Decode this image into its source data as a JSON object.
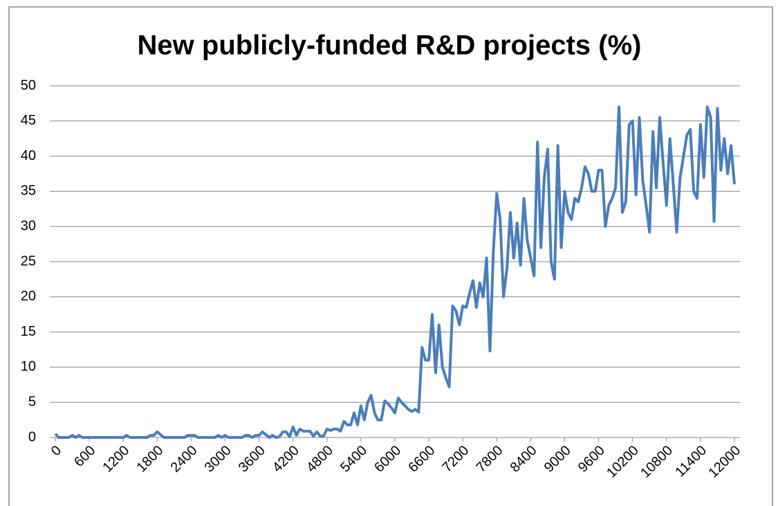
{
  "chart_data": {
    "type": "line",
    "title": "New publicly-funded R&D projects (%)",
    "x": [
      0,
      60,
      120,
      180,
      240,
      300,
      360,
      420,
      480,
      540,
      600,
      660,
      720,
      780,
      840,
      900,
      960,
      1020,
      1080,
      1140,
      1200,
      1260,
      1320,
      1380,
      1440,
      1500,
      1560,
      1620,
      1680,
      1740,
      1800,
      1860,
      1920,
      1980,
      2040,
      2100,
      2160,
      2220,
      2280,
      2340,
      2400,
      2460,
      2520,
      2580,
      2640,
      2700,
      2760,
      2820,
      2880,
      2940,
      3000,
      3060,
      3120,
      3180,
      3240,
      3300,
      3360,
      3420,
      3480,
      3540,
      3600,
      3660,
      3720,
      3780,
      3840,
      3900,
      3960,
      4020,
      4080,
      4140,
      4200,
      4260,
      4320,
      4380,
      4440,
      4500,
      4560,
      4620,
      4680,
      4740,
      4800,
      4860,
      4920,
      4980,
      5040,
      5100,
      5160,
      5220,
      5280,
      5340,
      5400,
      5460,
      5520,
      5580,
      5640,
      5700,
      5760,
      5820,
      5880,
      5940,
      6000,
      6060,
      6120,
      6180,
      6240,
      6300,
      6360,
      6420,
      6480,
      6540,
      6600,
      6660,
      6720,
      6780,
      6840,
      6900,
      6960,
      7020,
      7080,
      7140,
      7200,
      7260,
      7320,
      7380,
      7440,
      7500,
      7560,
      7620,
      7680,
      7740,
      7800,
      7860,
      7920,
      7980,
      8040,
      8100,
      8160,
      8220,
      8280,
      8340,
      8400,
      8460,
      8520,
      8580,
      8640,
      8700,
      8760,
      8820,
      8880,
      8940,
      9000,
      9060,
      9120,
      9180,
      9240,
      9300,
      9360,
      9420,
      9480,
      9540,
      9600,
      9660,
      9720,
      9780,
      9840,
      9900,
      9960,
      10020,
      10080,
      10140,
      10200,
      10260,
      10320,
      10380,
      10440,
      10500,
      10560,
      10620,
      10680,
      10740,
      10800,
      10860,
      10920,
      10980,
      11040,
      11100,
      11160,
      11220,
      11280,
      11340,
      11400,
      11460,
      11520,
      11580,
      11640,
      11700,
      11760,
      11820,
      11880,
      11940,
      12000
    ],
    "series": [
      {
        "name": "New publicly-funded R&D projects (%)",
        "color": "#4a7ebb",
        "values": [
          0.5,
          0,
          0,
          0,
          0,
          0.3,
          0,
          0.3,
          0,
          0,
          0,
          0,
          0,
          0,
          0,
          0,
          0,
          0,
          0,
          0,
          0,
          0.3,
          0,
          0,
          0,
          0,
          0,
          0,
          0.3,
          0.3,
          0.8,
          0.4,
          0,
          0,
          0,
          0,
          0,
          0,
          0,
          0.3,
          0.3,
          0.3,
          0,
          0,
          0,
          0,
          0,
          0,
          0.3,
          0,
          0.3,
          0,
          0,
          0,
          0,
          0,
          0.3,
          0.3,
          0,
          0.3,
          0.3,
          0.8,
          0.4,
          0,
          0.3,
          0,
          0.1,
          0.8,
          0.8,
          0.1,
          1.5,
          0.3,
          1.2,
          0.9,
          0.9,
          0.9,
          0.2,
          0.8,
          0.2,
          0.2,
          1.2,
          1.0,
          1.2,
          1.2,
          0.9,
          2.3,
          1.8,
          1.8,
          3.5,
          1.8,
          4.5,
          2.5,
          5,
          6,
          3.5,
          2.5,
          2.5,
          5.2,
          4.8,
          4.2,
          3.5,
          5.6,
          5,
          4.5,
          4,
          3.7,
          4,
          3.6,
          12.8,
          11,
          11,
          17.5,
          9.2,
          16,
          10,
          8.5,
          7.2,
          18.7,
          18,
          16,
          18.7,
          18.5,
          20.5,
          22.3,
          18.5,
          22,
          20,
          25.5,
          12.3,
          26.5,
          34.7,
          31,
          20,
          24,
          32,
          25.5,
          30.5,
          24.5,
          34,
          28,
          25.5,
          23,
          42,
          27,
          37,
          41,
          25,
          22.5,
          41.5,
          27,
          35,
          32,
          31,
          34,
          33.5,
          35.5,
          38.5,
          37.5,
          35,
          35,
          38,
          38,
          30,
          33,
          34,
          35.5,
          47,
          32,
          33.5,
          44.5,
          45,
          34.5,
          45.5,
          36.5,
          33,
          29.2,
          43.5,
          35.5,
          45.5,
          39,
          33,
          42.5,
          36,
          29.2,
          37,
          40,
          43,
          43.8,
          35,
          34,
          44.5,
          37,
          47,
          45.5,
          30.7,
          46.8,
          38,
          42.5,
          37.5,
          41.5,
          36
        ]
      }
    ],
    "xlim": [
      0,
      12000
    ],
    "xticks": [
      0,
      600,
      1200,
      1800,
      2400,
      3000,
      3600,
      4200,
      4800,
      5400,
      6000,
      6600,
      7200,
      7800,
      8400,
      9000,
      9600,
      10200,
      10800,
      11400,
      12000
    ],
    "ylim": [
      0,
      50
    ],
    "yticks": [
      0,
      5,
      10,
      15,
      20,
      25,
      30,
      35,
      40,
      45,
      50
    ],
    "grid": true
  }
}
